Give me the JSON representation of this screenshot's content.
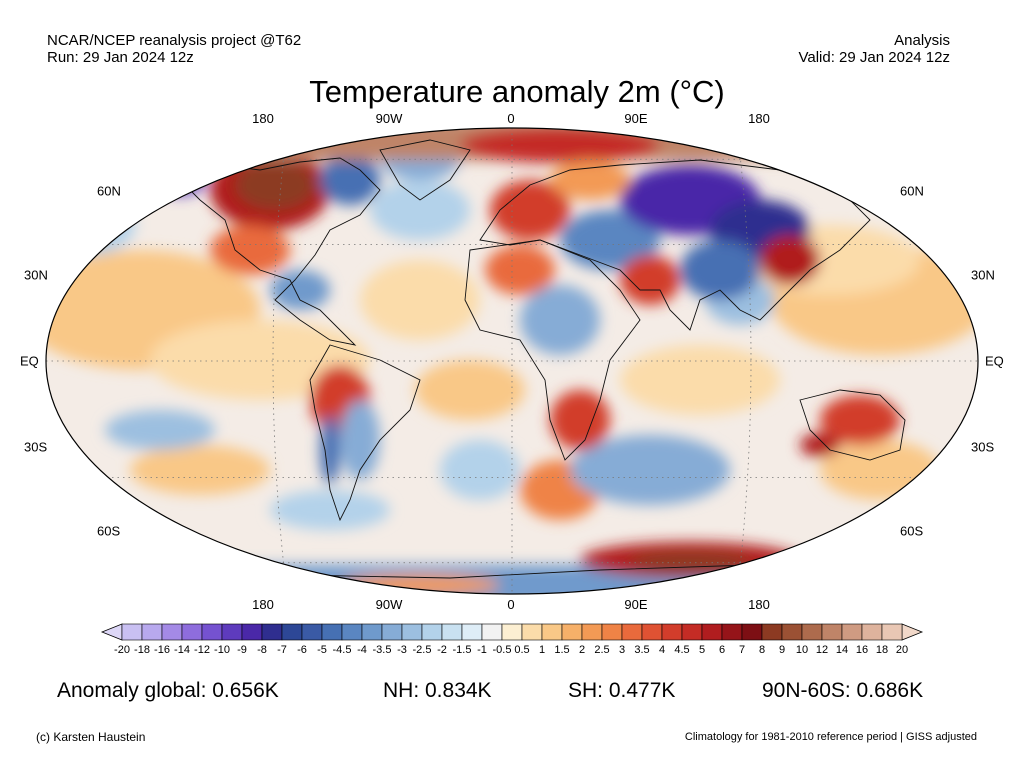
{
  "header": {
    "project": "NCAR/NCEP reanalysis project @T62",
    "run": "Run: 29 Jan 2024 12z",
    "type": "Analysis",
    "valid": "Valid: 29 Jan 2024 12z"
  },
  "title": "Temperature anomaly 2m (°C)",
  "longitude_labels": [
    "180",
    "90W",
    "0",
    "90E",
    "180"
  ],
  "latitude_labels": [
    "60N",
    "30N",
    "EQ",
    "30S",
    "60S"
  ],
  "colorbar": {
    "ticks": [
      "-20",
      "-18",
      "-16",
      "-14",
      "-12",
      "-10",
      "-9",
      "-8",
      "-7",
      "-6",
      "-5",
      "-4.5",
      "-4",
      "-3.5",
      "-3",
      "-2.5",
      "-2",
      "-1.5",
      "-1",
      "-0.5",
      "0.5",
      "1",
      "1.5",
      "2",
      "2.5",
      "3",
      "3.5",
      "4",
      "4.5",
      "5",
      "6",
      "7",
      "8",
      "9",
      "10",
      "12",
      "14",
      "16",
      "18",
      "20"
    ],
    "colors": [
      "#c9c0f2",
      "#b8a9ee",
      "#a48ae6",
      "#8e6ddd",
      "#7552d0",
      "#5e3bbd",
      "#4a28a8",
      "#2f2e8f",
      "#2d4796",
      "#3a5aa5",
      "#4670b3",
      "#5a86c1",
      "#6f9acc",
      "#86acd6",
      "#9cbfe0",
      "#b3d2ea",
      "#c9e1f1",
      "#deedf7",
      "#f2f2f2",
      "#fcefd2",
      "#fbdcaa",
      "#f9c887",
      "#f6b069",
      "#f39a55",
      "#ef8346",
      "#e96a3c",
      "#df5233",
      "#d23d2b",
      "#c42c25",
      "#b01d1f",
      "#951419",
      "#7d0f14",
      "#8c3a22",
      "#9b5134",
      "#ad6b4d",
      "#bf8468",
      "#cf9b82",
      "#deb39d",
      "#e9c7b4"
    ],
    "under_color": "#ddd7f7",
    "over_color": "#f1d8c9"
  },
  "stats": {
    "global": "Anomaly global: 0.656K",
    "nh": "NH: 0.834K",
    "sh": "SH: 0.477K",
    "arctic": "90N-60S: 0.686K"
  },
  "footer": {
    "credit": "(c) Karsten Haustein",
    "note": "Climatology for 1981-2010 reference period | GISS adjusted"
  }
}
